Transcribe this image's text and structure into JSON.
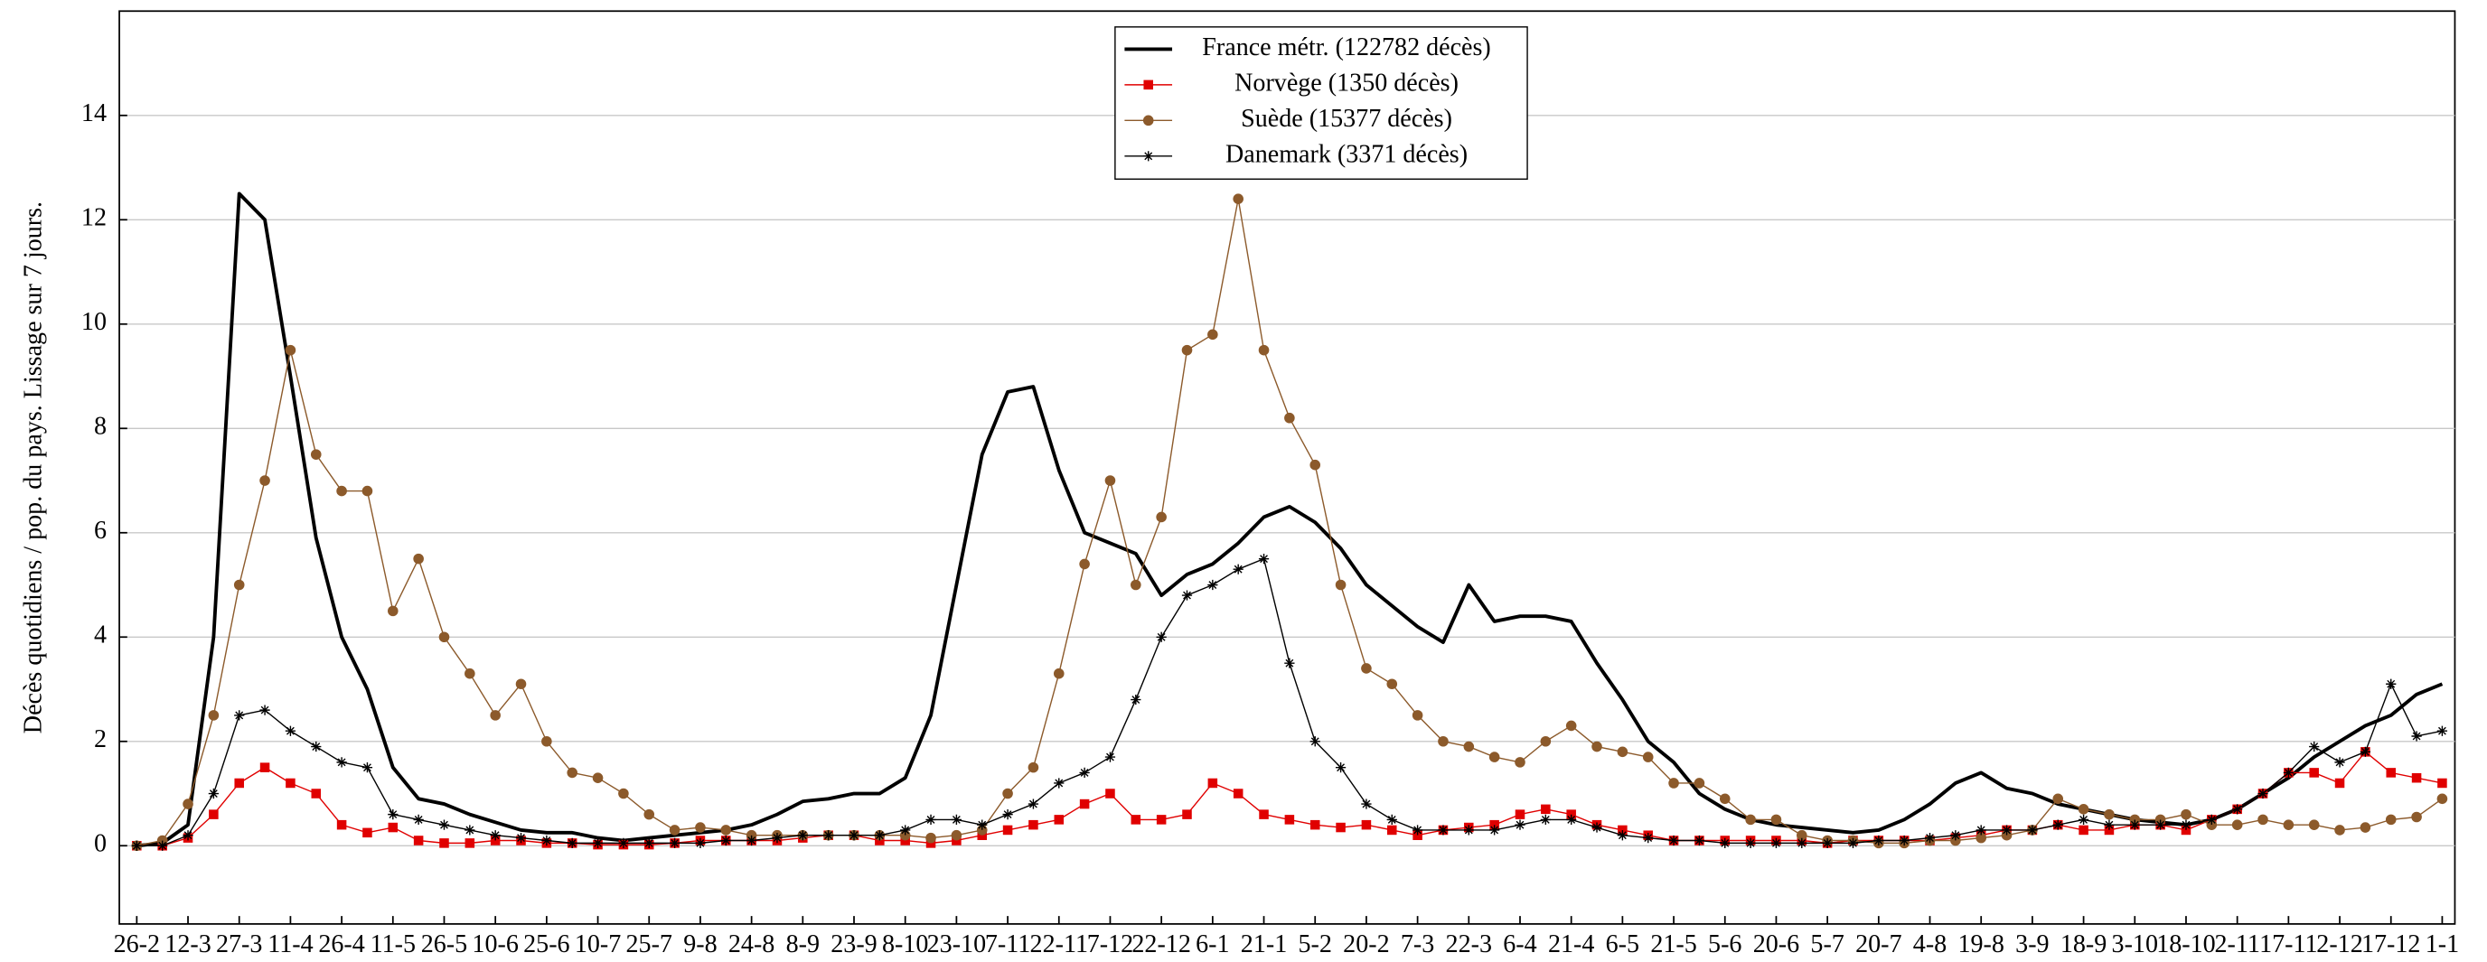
{
  "chart_data": {
    "type": "line",
    "y_label": "Décès quotidiens / pop. du pays. Lissage sur 7 jours.",
    "categories": [
      "26-2",
      null,
      "12-3",
      null,
      "27-3",
      null,
      "11-4",
      null,
      "26-4",
      null,
      "11-5",
      null,
      "26-5",
      null,
      "10-6",
      null,
      "25-6",
      null,
      "10-7",
      null,
      "25-7",
      null,
      "9-8",
      null,
      "24-8",
      null,
      "8-9",
      null,
      "23-9",
      null,
      "8-10",
      null,
      "23-10",
      null,
      "7-11",
      null,
      "22-11",
      null,
      "7-12",
      null,
      "22-12",
      null,
      "6-1",
      null,
      "21-1",
      null,
      "5-2",
      null,
      "20-2",
      null,
      "7-3",
      null,
      "22-3",
      null,
      "6-4",
      null,
      "21-4",
      null,
      "6-5",
      null,
      "21-5",
      null,
      "5-6",
      null,
      "20-6",
      null,
      "5-7",
      null,
      "20-7",
      null,
      "4-8",
      null,
      "19-8",
      null,
      "3-9",
      null,
      "18-9",
      null,
      "3-10",
      null,
      "18-10",
      null,
      "2-11",
      null,
      "17-11",
      null,
      "2-12",
      null,
      "17-12",
      null,
      "1-1"
    ],
    "series": [
      {
        "name": "France métr. (122782 décès)",
        "color": "#000000",
        "marker": "none",
        "width": 2.2,
        "values": [
          0,
          0.05,
          0.4,
          4.0,
          12.5,
          12.0,
          9.0,
          5.9,
          4.0,
          3.0,
          1.5,
          0.9,
          0.8,
          0.6,
          0.45,
          0.3,
          0.25,
          0.25,
          0.15,
          0.1,
          0.15,
          0.2,
          0.25,
          0.3,
          0.4,
          0.6,
          0.85,
          0.9,
          1.0,
          1.0,
          1.3,
          2.5,
          5.0,
          7.5,
          8.7,
          8.8,
          7.2,
          6.0,
          5.8,
          5.6,
          4.8,
          5.2,
          5.4,
          5.8,
          6.3,
          6.5,
          6.2,
          5.7,
          5.0,
          4.6,
          4.2,
          3.9,
          5.0,
          4.3,
          4.4,
          4.4,
          4.3,
          3.5,
          2.8,
          2.0,
          1.6,
          1.0,
          0.7,
          0.5,
          0.4,
          0.35,
          0.3,
          0.25,
          0.3,
          0.5,
          0.8,
          1.2,
          1.4,
          1.1,
          1.0,
          0.8,
          0.7,
          0.6,
          0.5,
          0.45,
          0.4,
          0.5,
          0.7,
          1.0,
          1.3,
          1.7,
          2.0,
          2.3,
          2.5,
          2.9,
          3.1
        ]
      },
      {
        "name": "Norvège (1350 décès)",
        "color": "#e00000",
        "marker": "square",
        "width": 0.8,
        "values": [
          0,
          0,
          0.15,
          0.6,
          1.2,
          1.5,
          1.2,
          1.0,
          0.4,
          0.25,
          0.35,
          0.1,
          0.05,
          0.05,
          0.1,
          0.1,
          0.05,
          0.05,
          0.02,
          0.02,
          0.02,
          0.05,
          0.1,
          0.1,
          0.1,
          0.1,
          0.15,
          0.2,
          0.2,
          0.1,
          0.1,
          0.05,
          0.1,
          0.2,
          0.3,
          0.4,
          0.5,
          0.8,
          1.0,
          0.5,
          0.5,
          0.6,
          1.2,
          1.0,
          0.6,
          0.5,
          0.4,
          0.35,
          0.4,
          0.3,
          0.2,
          0.3,
          0.35,
          0.4,
          0.6,
          0.7,
          0.6,
          0.4,
          0.3,
          0.2,
          0.1,
          0.1,
          0.1,
          0.1,
          0.1,
          0.1,
          0.05,
          0.1,
          0.1,
          0.1,
          0.1,
          0.15,
          0.2,
          0.3,
          0.3,
          0.4,
          0.3,
          0.3,
          0.4,
          0.4,
          0.3,
          0.5,
          0.7,
          1.0,
          1.4,
          1.4,
          1.2,
          1.8,
          1.4,
          1.3,
          1.2
        ]
      },
      {
        "name": "Suède (15377 décès)",
        "color": "#8c5a2b",
        "marker": "circle",
        "width": 0.8,
        "values": [
          0,
          0.1,
          0.8,
          2.5,
          5.0,
          7.0,
          9.5,
          7.5,
          6.8,
          6.8,
          4.5,
          5.5,
          4.0,
          3.3,
          2.5,
          3.1,
          2.0,
          1.4,
          1.3,
          1.0,
          0.6,
          0.3,
          0.35,
          0.3,
          0.2,
          0.2,
          0.2,
          0.2,
          0.2,
          0.2,
          0.2,
          0.15,
          0.2,
          0.3,
          1.0,
          1.5,
          3.3,
          5.4,
          7.0,
          5.0,
          6.3,
          9.5,
          9.8,
          12.4,
          9.5,
          8.2,
          7.3,
          5.0,
          3.4,
          3.1,
          2.5,
          2.0,
          1.9,
          1.7,
          1.6,
          2.0,
          2.3,
          1.9,
          1.8,
          1.7,
          1.2,
          1.2,
          0.9,
          0.5,
          0.5,
          0.2,
          0.1,
          0.1,
          0.05,
          0.05,
          0.1,
          0.1,
          0.15,
          0.2,
          0.3,
          0.9,
          0.7,
          0.6,
          0.5,
          0.5,
          0.6,
          0.4,
          0.4,
          0.5,
          0.4,
          0.4,
          0.3,
          0.35,
          0.5,
          0.55,
          0.9
        ]
      },
      {
        "name": "Danemark (3371 décès)",
        "color": "#000000",
        "marker": "star",
        "width": 0.8,
        "values": [
          0,
          0,
          0.2,
          1.0,
          2.5,
          2.6,
          2.2,
          1.9,
          1.6,
          1.5,
          0.6,
          0.5,
          0.4,
          0.3,
          0.2,
          0.15,
          0.1,
          0.05,
          0.05,
          0.05,
          0.05,
          0.05,
          0.05,
          0.1,
          0.1,
          0.15,
          0.2,
          0.2,
          0.2,
          0.2,
          0.3,
          0.5,
          0.5,
          0.4,
          0.6,
          0.8,
          1.2,
          1.4,
          1.7,
          2.8,
          4.0,
          4.8,
          5.0,
          5.3,
          5.5,
          3.5,
          2.0,
          1.5,
          0.8,
          0.5,
          0.3,
          0.3,
          0.3,
          0.3,
          0.4,
          0.5,
          0.5,
          0.35,
          0.2,
          0.15,
          0.1,
          0.1,
          0.05,
          0.05,
          0.05,
          0.05,
          0.05,
          0.05,
          0.1,
          0.1,
          0.15,
          0.2,
          0.3,
          0.3,
          0.3,
          0.4,
          0.5,
          0.4,
          0.4,
          0.4,
          0.4,
          0.5,
          0.7,
          1.0,
          1.4,
          1.9,
          1.6,
          1.8,
          3.1,
          2.1,
          2.2
        ]
      }
    ],
    "ylim": [
      -1.5,
      16
    ],
    "yticks": [
      0,
      2,
      4,
      6,
      8,
      10,
      12,
      14
    ],
    "grid": true,
    "legend": "top-center"
  }
}
